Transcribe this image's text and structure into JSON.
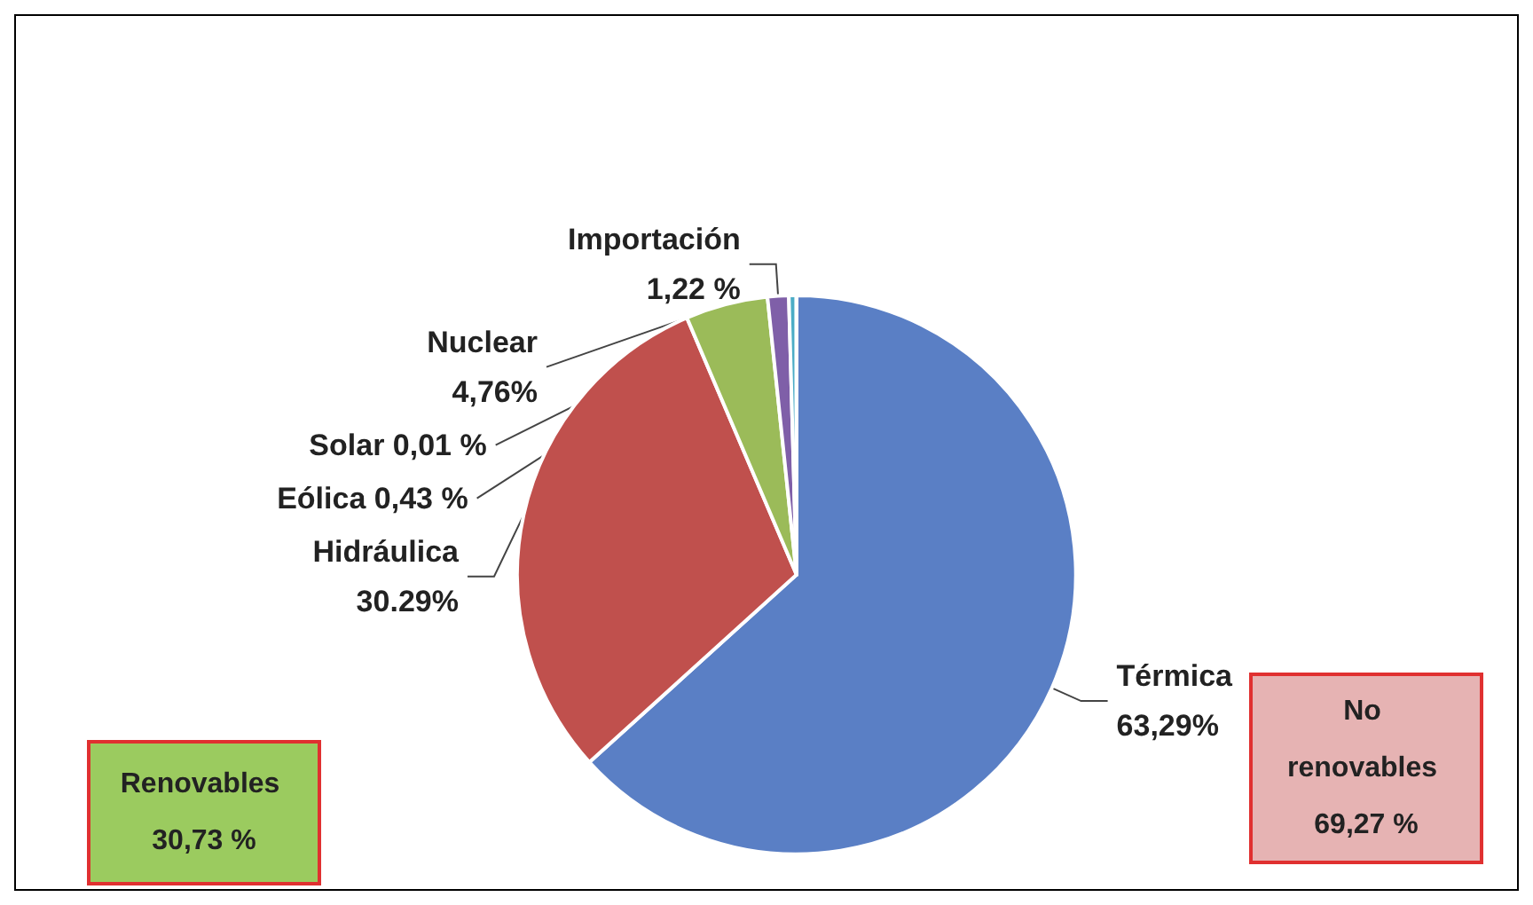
{
  "chart_data": {
    "type": "pie",
    "categories": [
      "Térmica",
      "Hidráulica",
      "Nuclear",
      "Importación",
      "Eólica",
      "Solar"
    ],
    "values": [
      63.29,
      30.29,
      4.76,
      1.22,
      0.43,
      0.01
    ],
    "value_labels": [
      "63,29%",
      "30.29%",
      "4,76%",
      "1,22 %",
      "0,43 %",
      "0,01 %"
    ],
    "colors": [
      "#5a7fc5",
      "#c0504d",
      "#9bbb59",
      "#7f5fa8",
      "#4bacc6",
      "#d9e8f5"
    ],
    "annotations": [
      "Renovables 30,73 %",
      "No renovables 69,27 %"
    ],
    "legend": false
  }
}
